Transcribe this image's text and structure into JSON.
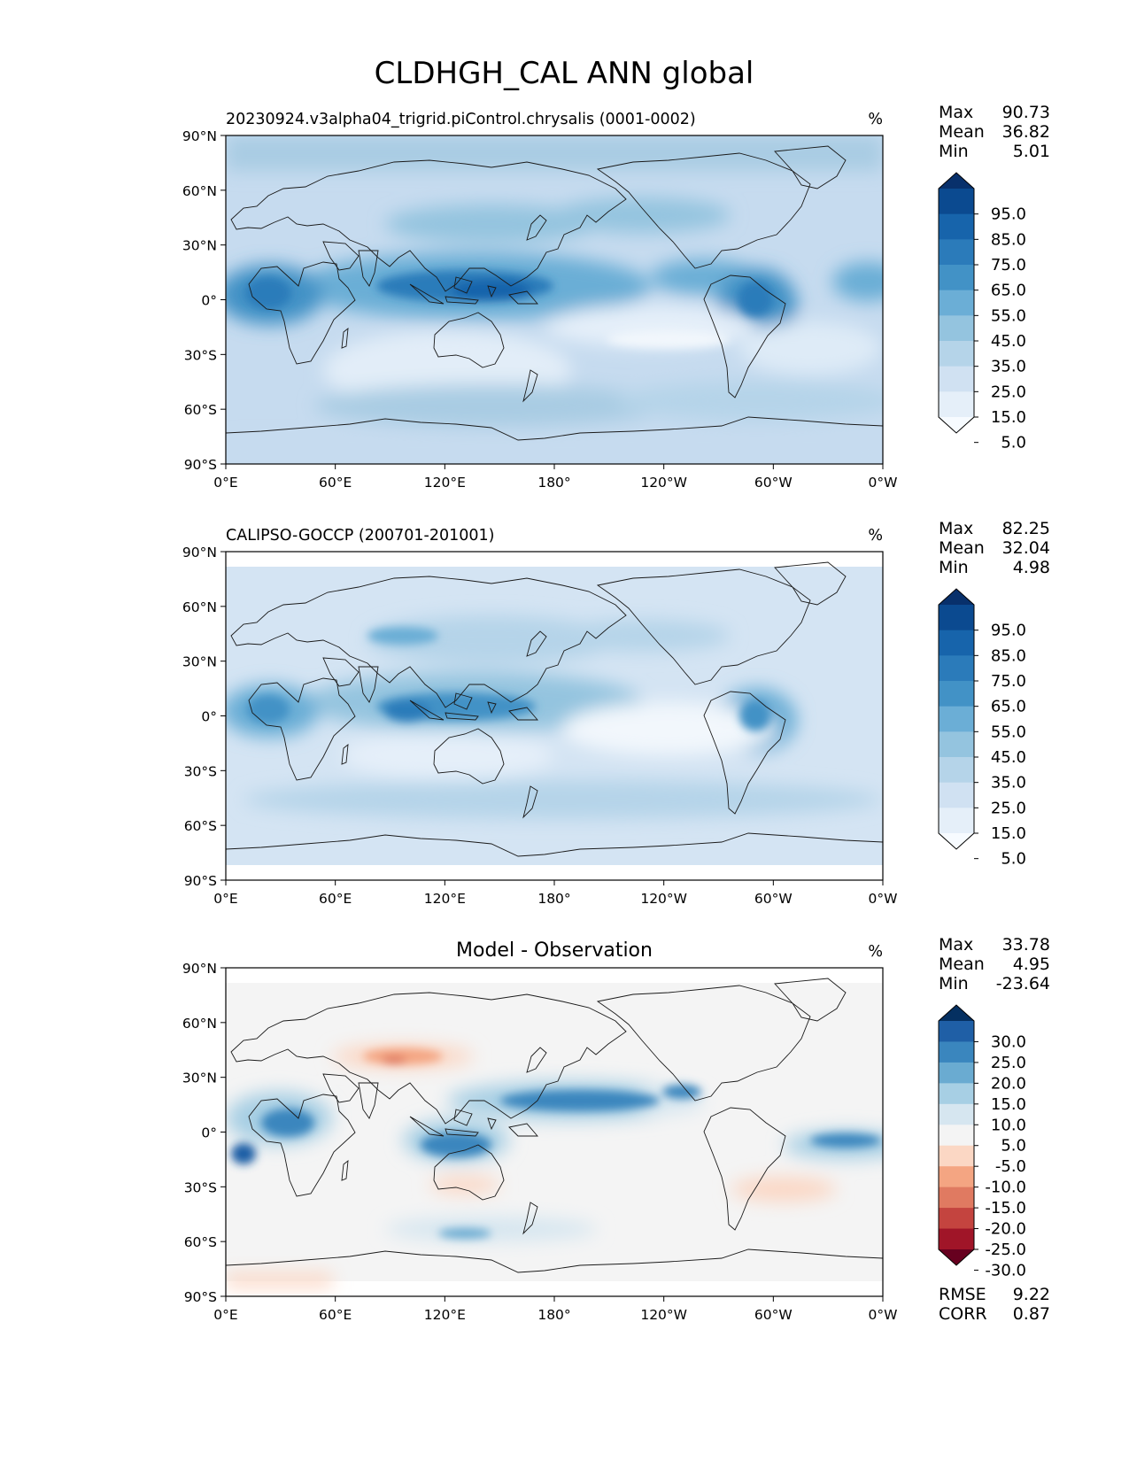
{
  "title": "CLDHGH_CAL ANN global",
  "panels": [
    {
      "id": "model",
      "title_left": "20230924.v3alpha04_trigrid.piControl.chrysalis (0001-0002)",
      "title_center": "",
      "units": "%",
      "stats": [
        {
          "label": "Max",
          "value": "90.73"
        },
        {
          "label": "Mean",
          "value": "36.82"
        },
        {
          "label": "Min",
          "value": "5.01"
        }
      ],
      "colorbar_labels": [
        "95.0",
        "85.0",
        "75.0",
        "65.0",
        "55.0",
        "45.0",
        "35.0",
        "25.0",
        "15.0",
        "5.0"
      ],
      "colorbar_colors": [
        "#08306b",
        "#0b4a90",
        "#1764ab",
        "#2b7bba",
        "#4292c6",
        "#6baed6",
        "#94c4df",
        "#b5d4e9",
        "#d0e1f2",
        "#e5eff9",
        "#f7fbff"
      ],
      "footer_stats": []
    },
    {
      "id": "obs",
      "title_left": "CALIPSO-GOCCP (200701-201001)",
      "title_center": "",
      "units": "%",
      "stats": [
        {
          "label": "Max",
          "value": "82.25"
        },
        {
          "label": "Mean",
          "value": "32.04"
        },
        {
          "label": "Min",
          "value": "4.98"
        }
      ],
      "colorbar_labels": [
        "95.0",
        "85.0",
        "75.0",
        "65.0",
        "55.0",
        "45.0",
        "35.0",
        "25.0",
        "15.0",
        "5.0"
      ],
      "colorbar_colors": [
        "#08306b",
        "#0b4a90",
        "#1764ab",
        "#2b7bba",
        "#4292c6",
        "#6baed6",
        "#94c4df",
        "#b5d4e9",
        "#d0e1f2",
        "#e5eff9",
        "#f7fbff"
      ],
      "footer_stats": []
    },
    {
      "id": "diff",
      "title_left": "",
      "title_center": "Model - Observation",
      "units": "%",
      "stats": [
        {
          "label": "Max",
          "value": "33.78"
        },
        {
          "label": "Mean",
          "value": "4.95"
        },
        {
          "label": "Min",
          "value": "-23.64"
        }
      ],
      "colorbar_labels": [
        "30.0",
        "25.0",
        "20.0",
        "15.0",
        "10.0",
        "5.0",
        "-5.0",
        "-10.0",
        "-15.0",
        "-20.0",
        "-25.0",
        "-30.0"
      ],
      "colorbar_colors": [
        "#053061",
        "#1f5fa6",
        "#3a86be",
        "#6aabd1",
        "#a7cfe4",
        "#d6e6f0",
        "#f4f4f4",
        "#fbd7c4",
        "#f4a582",
        "#e07a61",
        "#c4443f",
        "#a01528",
        "#67001f"
      ],
      "footer_stats": [
        {
          "label": "RMSE",
          "value": "9.22"
        },
        {
          "label": "CORR",
          "value": "0.87"
        }
      ]
    }
  ],
  "axes": {
    "lat_ticks": [
      "90°N",
      "60°N",
      "30°N",
      "0°",
      "30°S",
      "60°S",
      "90°S"
    ],
    "lon_ticks": [
      "0°E",
      "60°E",
      "120°E",
      "180°",
      "120°W",
      "60°W",
      "0°W"
    ]
  },
  "colors": {
    "ocean_base_model": "#c6dbef",
    "ocean_base_obs": "#d4e4f3",
    "diff_base": "#f4f4f4",
    "coast": "#1a1a1a"
  }
}
